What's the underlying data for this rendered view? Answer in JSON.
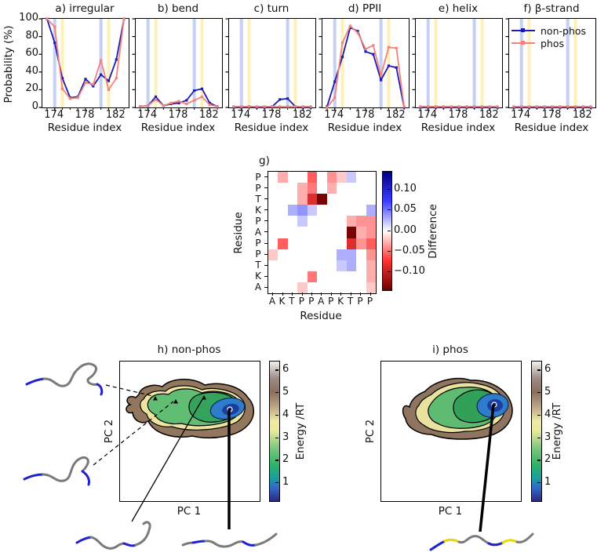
{
  "colors": {
    "non_phos": "#1c1cb0",
    "phos": "#f4827b",
    "band_blue": "#c6d0f2",
    "band_yellow": "#fdf1b8",
    "heat_negative": "#6e0000",
    "heat_positive": "#000080",
    "terrain_low": "#2a2a7e",
    "terrain_high": "#f2f0ee"
  },
  "legend": [
    {
      "label": "non-phos",
      "color": "#1c1cb0"
    },
    {
      "label": "phos",
      "color": "#f4827b"
    }
  ],
  "artwork": [
    {
      "name": "molecule-cartoon-1",
      "desc": "coil conformer, blue termini"
    },
    {
      "name": "molecule-cartoon-2",
      "desc": "coil conformer, blue termini"
    },
    {
      "name": "molecule-cartoon-3",
      "desc": "extended conformer, blue termini"
    },
    {
      "name": "molecule-cartoon-4",
      "desc": "extended conformer, blue termini"
    },
    {
      "name": "molecule-cartoon-phos",
      "desc": "extended conformer, yellow phosphosites"
    }
  ],
  "chart_data": [
    {
      "type": "line",
      "ylabel": "Probability (%)",
      "xlabel": "Residue index",
      "yticks": [
        0,
        20,
        40,
        60,
        80,
        100
      ],
      "xticks": [
        174,
        178,
        182
      ],
      "x_range": [
        172.4,
        183.6
      ],
      "y_range": [
        0,
        100
      ],
      "x_values": [
        173,
        174,
        175,
        176,
        177,
        178,
        179,
        180,
        181,
        182,
        183
      ],
      "bands": {
        "blue": [
          174,
          180
        ],
        "yellow": [
          175,
          181
        ]
      },
      "panels": [
        {
          "id": "a",
          "title": "a) irregular",
          "non_phos": [
            100,
            73,
            33,
            11,
            12,
            32,
            24,
            37,
            30,
            54,
            100
          ],
          "phos": [
            100,
            91,
            21,
            10,
            11,
            28,
            26,
            53,
            20,
            33,
            100
          ]
        },
        {
          "id": "b",
          "title": "b) bend",
          "non_phos": [
            1,
            2,
            12,
            2,
            4,
            5,
            8,
            19,
            21,
            5,
            1
          ],
          "phos": [
            1,
            2,
            9,
            2,
            5,
            7,
            4,
            8,
            12,
            3,
            1
          ]
        },
        {
          "id": "c",
          "title": "c) turn",
          "non_phos": [
            0,
            0,
            1,
            0,
            0,
            1,
            9,
            10,
            1,
            0,
            0
          ],
          "phos": [
            1,
            1,
            1,
            1,
            1,
            1,
            1,
            1,
            1,
            1,
            1
          ]
        },
        {
          "id": "d",
          "title": "d) PPII",
          "non_phos": [
            1,
            29,
            57,
            90,
            86,
            63,
            60,
            31,
            47,
            45,
            0
          ],
          "phos": [
            0,
            11,
            73,
            92,
            84,
            66,
            70,
            36,
            68,
            67,
            1
          ]
        },
        {
          "id": "e",
          "title": "e) helix",
          "non_phos": [
            0,
            0,
            0,
            0,
            0,
            0,
            0,
            0,
            0,
            0,
            0
          ],
          "phos": [
            1,
            1,
            1,
            1,
            1,
            1,
            1,
            1,
            1,
            1,
            1
          ]
        },
        {
          "id": "f",
          "title": "f) β-strand",
          "non_phos": [
            0,
            0,
            0,
            0,
            0,
            0,
            0,
            0,
            0,
            0,
            0
          ],
          "phos": [
            1,
            1,
            1,
            1,
            1,
            1,
            1,
            1,
            1,
            1,
            1
          ]
        }
      ]
    },
    {
      "type": "heatmap",
      "title": "g)",
      "xlabel": "Residue",
      "ylabel": "Residue",
      "sequence": [
        "A",
        "K",
        "T",
        "P",
        "P",
        "A",
        "P",
        "K",
        "T",
        "P",
        "P"
      ],
      "rows_top_to_bottom": [
        "P",
        "P",
        "T",
        "K",
        "P",
        "A",
        "P",
        "P",
        "T",
        "K",
        "A"
      ],
      "matrix": [
        [
          0,
          -0.03,
          0,
          0,
          -0.06,
          0,
          -0.04,
          -0.02,
          0.02,
          0,
          0
        ],
        [
          0,
          0,
          0,
          -0.03,
          -0.05,
          0,
          -0.03,
          0,
          0,
          0,
          0
        ],
        [
          0,
          0,
          0,
          -0.03,
          -0.09,
          -0.14,
          0,
          0,
          0,
          0,
          0
        ],
        [
          0,
          0,
          0.03,
          0.04,
          0.02,
          0,
          0,
          0,
          0,
          0,
          0.03
        ],
        [
          0,
          0,
          0,
          0.02,
          0,
          0,
          0,
          0,
          -0.03,
          -0.04,
          -0.04
        ],
        [
          0,
          0,
          0,
          0,
          0,
          0,
          0,
          0,
          -0.14,
          -0.03,
          -0.04
        ],
        [
          0,
          -0.06,
          0,
          0,
          0,
          0,
          0,
          0,
          -0.09,
          -0.04,
          -0.06
        ],
        [
          -0.02,
          0,
          0,
          0,
          0,
          0,
          0,
          0.03,
          0.03,
          0,
          -0.04
        ],
        [
          0,
          0,
          0,
          0,
          0,
          0,
          0,
          0.02,
          0.03,
          0,
          -0.03
        ],
        [
          0,
          0,
          0,
          0,
          -0.05,
          0,
          0,
          0,
          0,
          0,
          -0.03
        ],
        [
          0,
          0,
          0,
          -0.02,
          0,
          0,
          0,
          0,
          0,
          0,
          -0.02
        ]
      ],
      "colorbar": {
        "label": "Difference",
        "vmin": -0.145,
        "vmax": 0.145,
        "ticks": [
          {
            "label": "0.10",
            "value": 0.1
          },
          {
            "label": "0.05",
            "value": 0.05
          },
          {
            "label": "0.00",
            "value": 0.0
          },
          {
            "label": "−0.05",
            "value": -0.05
          },
          {
            "label": "−0.10",
            "value": -0.1
          }
        ]
      }
    },
    {
      "type": "contour",
      "title": "h) non-phos",
      "xlabel": "PC 1",
      "ylabel": "PC 2",
      "colorbar": {
        "label": "Energy /RT",
        "ticks": [
          1,
          2,
          3,
          4,
          5,
          6
        ],
        "vmin": 0.2,
        "vmax": 6.4
      },
      "minima_markers": 3,
      "global_minimum_marker": 1
    },
    {
      "type": "contour",
      "title": "i) phos",
      "xlabel": "PC 1",
      "ylabel": "PC 2",
      "colorbar": {
        "label": "Energy /RT",
        "ticks": [
          1,
          2,
          3,
          4,
          5,
          6
        ],
        "vmin": 0.2,
        "vmax": 6.4
      },
      "minima_markers": 0,
      "global_minimum_marker": 1
    }
  ]
}
